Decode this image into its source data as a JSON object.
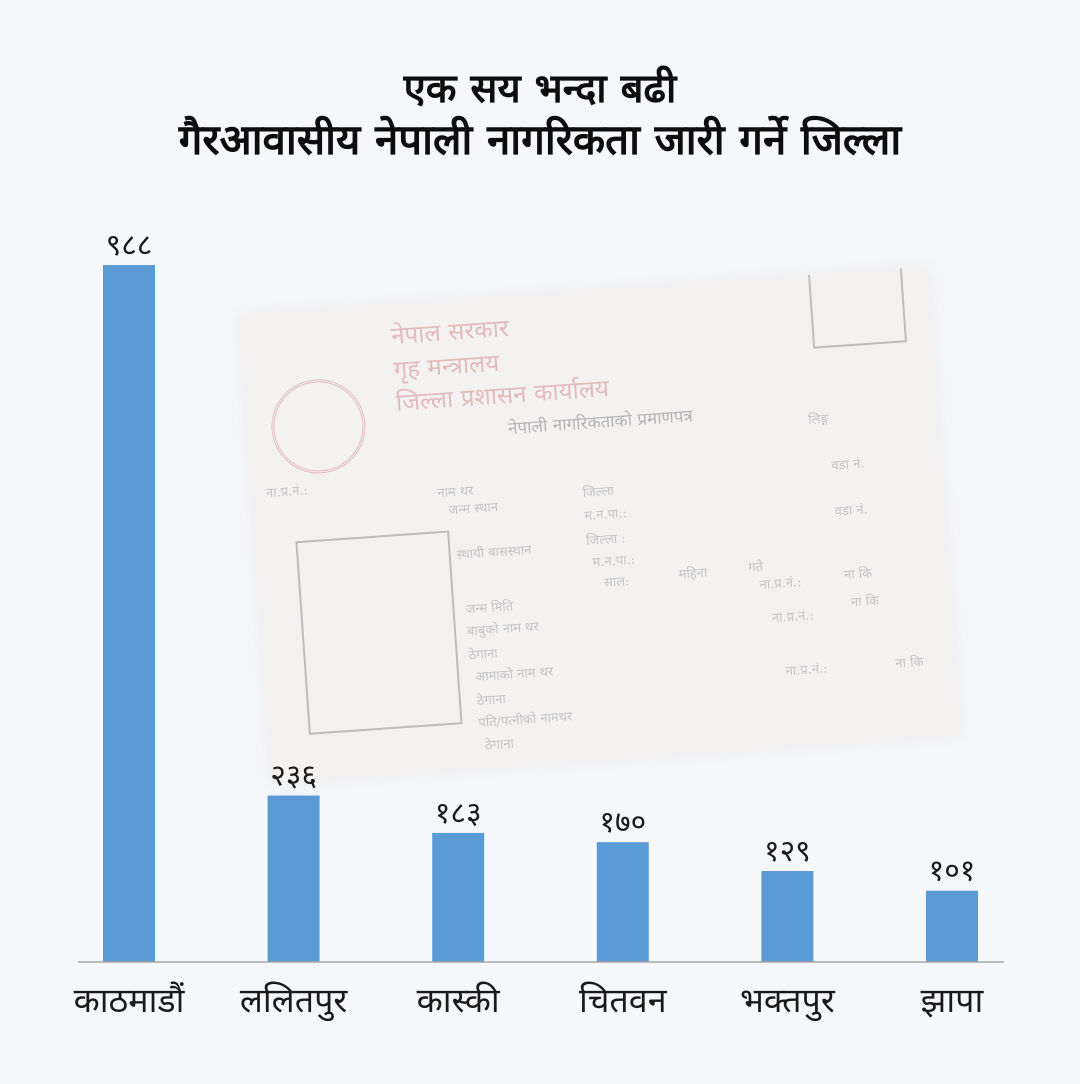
{
  "chart_data": {
    "type": "bar",
    "title_line1": "एक सय भन्दा बढी",
    "title_line2": "गैरआवासीय नेपाली नागरिकता जारी गर्ने जिल्ला",
    "categories": [
      "काठमाडौं",
      "ललितपुर",
      "कास्की",
      "चितवन",
      "भक्तपुर",
      "झापा"
    ],
    "values": [
      988,
      236,
      183,
      170,
      129,
      101
    ],
    "value_labels": [
      "९८८",
      "२३६",
      "१८३",
      "१७०",
      "१२९",
      "१०१"
    ],
    "xlabel": "",
    "ylabel": "",
    "ylim": [
      0,
      988
    ],
    "grid": false,
    "legend": "none",
    "bar_color": "#5b9bd5"
  },
  "background_image": {
    "header": [
      "नेपाल सरकार",
      "गृह मन्त्रालय",
      "जिल्ला प्रशासन कार्यालय"
    ],
    "certificate_title": "नेपाली नागरिकताको प्रमाणपत्र",
    "fields": [
      "ना.प्र.नं.:",
      "लिङ्ग",
      "नाम थर",
      "जन्म स्थान",
      "जिल्ला",
      "वडा नं.",
      "म.न.पा.:",
      "स्थायी बासस्थान",
      "जिल्ला :",
      "वडा नं.",
      "म.न.पा.:",
      "साल:",
      "महिना",
      "गते",
      "जन्म मिति",
      "ना.प्र.नं.:",
      "ना कि",
      "बाबुको नाम थर",
      "ठेगाना",
      "ना.प्र.नं.:",
      "ना कि",
      "आमाको नाम थर",
      "ठेगाना",
      "ना.प्र.नं.:",
      "ना कि",
      "पति/पत्नीको नामथर",
      "ठेगाना"
    ]
  }
}
